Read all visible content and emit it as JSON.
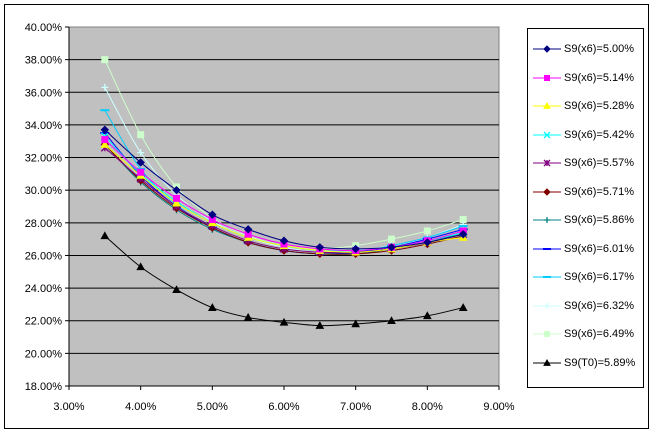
{
  "chart_data": {
    "type": "line",
    "title": "",
    "xlabel": "",
    "ylabel": "",
    "xlim": [
      0.03,
      0.09
    ],
    "ylim": [
      0.18,
      0.4
    ],
    "x_ticks": [
      "3.00%",
      "4.00%",
      "5.00%",
      "6.00%",
      "7.00%",
      "8.00%",
      "9.00%"
    ],
    "y_ticks": [
      "18.00%",
      "20.00%",
      "22.00%",
      "24.00%",
      "26.00%",
      "28.00%",
      "30.00%",
      "32.00%",
      "34.00%",
      "36.00%",
      "38.00%",
      "40.00%"
    ],
    "grid": "horizontal",
    "plot_background": "#c0c0c0",
    "legend_position": "right",
    "x": [
      0.035,
      0.04,
      0.045,
      0.05,
      0.055,
      0.06,
      0.065,
      0.07,
      0.075,
      0.08,
      0.085
    ],
    "series": [
      {
        "name": "S9(x6)=5.00%",
        "color": "#000080",
        "marker": "diamond",
        "values": [
          0.337,
          0.317,
          0.3,
          0.285,
          0.276,
          0.269,
          0.265,
          0.264,
          0.265,
          0.268,
          0.273
        ]
      },
      {
        "name": "S9(x6)=5.14%",
        "color": "#ff00ff",
        "marker": "square",
        "values": [
          0.331,
          0.311,
          0.295,
          0.282,
          0.273,
          0.267,
          0.264,
          0.263,
          0.265,
          0.269,
          0.275
        ]
      },
      {
        "name": "S9(x6)=5.28%",
        "color": "#ffff00",
        "marker": "triangle",
        "values": [
          0.328,
          0.309,
          0.292,
          0.28,
          0.271,
          0.266,
          0.263,
          0.262,
          0.264,
          0.268,
          0.271
        ]
      },
      {
        "name": "S9(x6)=5.42%",
        "color": "#00ffff",
        "marker": "x",
        "values": [
          0.333,
          0.31,
          0.293,
          0.28,
          0.271,
          0.266,
          0.263,
          0.263,
          0.265,
          0.269,
          0.274
        ]
      },
      {
        "name": "S9(x6)=5.57%",
        "color": "#800080",
        "marker": "asterisk",
        "values": [
          0.326,
          0.307,
          0.29,
          0.278,
          0.269,
          0.264,
          0.262,
          0.262,
          0.264,
          0.268,
          0.273
        ]
      },
      {
        "name": "S9(x6)=5.71%",
        "color": "#800000",
        "marker": "diamond",
        "values": [
          0.328,
          0.306,
          0.289,
          0.277,
          0.268,
          0.263,
          0.261,
          0.261,
          0.263,
          0.267,
          0.272
        ]
      },
      {
        "name": "S9(x6)=5.86%",
        "color": "#008080",
        "marker": "plus",
        "values": [
          0.328,
          0.305,
          0.288,
          0.276,
          0.268,
          0.263,
          0.261,
          0.261,
          0.264,
          0.268,
          0.274
        ]
      },
      {
        "name": "S9(x6)=6.01%",
        "color": "#0000ff",
        "marker": "dash",
        "values": [
          0.335,
          0.309,
          0.29,
          0.277,
          0.268,
          0.263,
          0.261,
          0.262,
          0.265,
          0.27,
          0.276
        ]
      },
      {
        "name": "S9(x6)=6.17%",
        "color": "#00ccff",
        "marker": "dash",
        "values": [
          0.349,
          0.313,
          0.291,
          0.277,
          0.268,
          0.263,
          0.261,
          0.262,
          0.266,
          0.271,
          0.278
        ]
      },
      {
        "name": "S9(x6)=6.32%",
        "color": "#ccffff",
        "marker": "plus",
        "values": [
          0.363,
          0.323,
          0.297,
          0.281,
          0.271,
          0.265,
          0.262,
          0.263,
          0.266,
          0.271,
          0.279
        ]
      },
      {
        "name": "S9(x6)=6.49%",
        "color": "#ccffcc",
        "marker": "square",
        "values": [
          0.38,
          0.334,
          0.302,
          0.283,
          0.272,
          0.266,
          0.264,
          0.266,
          0.27,
          0.275,
          0.282
        ]
      },
      {
        "name": "S9(T0)=5.89%",
        "color": "#000000",
        "marker": "triangle",
        "values": [
          0.272,
          0.253,
          0.239,
          0.228,
          0.222,
          0.219,
          0.217,
          0.218,
          0.22,
          0.223,
          0.228
        ]
      }
    ]
  }
}
